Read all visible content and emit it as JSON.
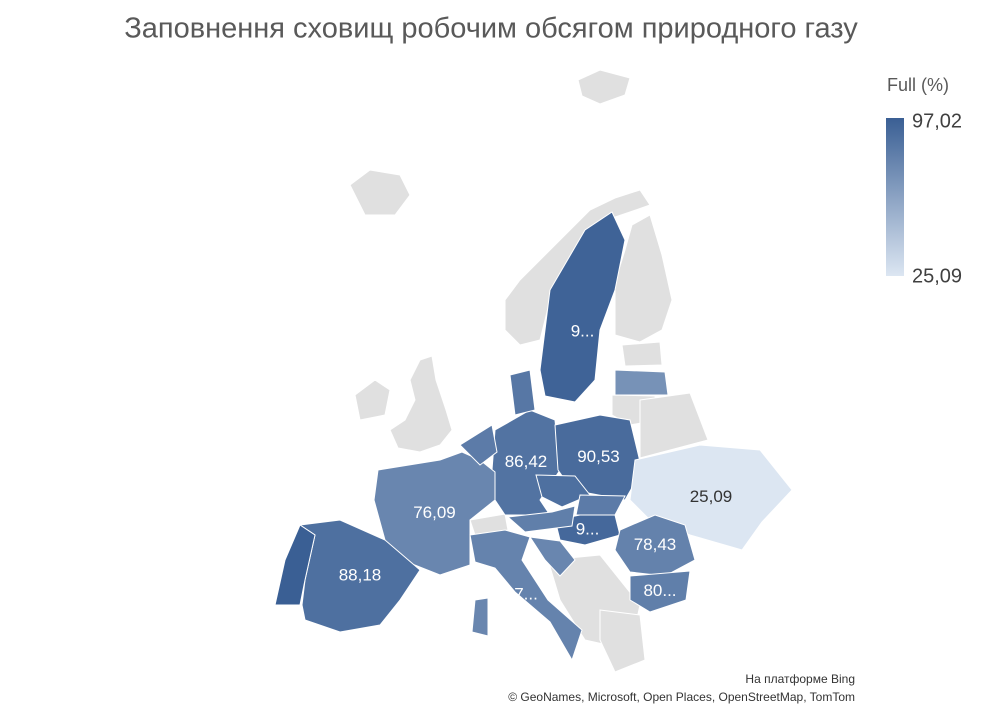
{
  "title": "Заповнення сховищ робочим обсягом природного газу",
  "legend": {
    "title": "Full (%)",
    "max": {
      "value": 97.02,
      "label": "97,02"
    },
    "min": {
      "value": 25.09,
      "label": "25,09"
    },
    "max_color": "#3a5f94",
    "min_color": "#dce6f2"
  },
  "regions": [
    {
      "value": 95,
      "label": "9..."
    },
    {
      "value": 86.42,
      "label": "86,42"
    },
    {
      "value": 90.53,
      "label": "90,53"
    },
    {
      "value": 25.09,
      "label": "25,09"
    },
    {
      "value": 76.09,
      "label": "76,09"
    },
    {
      "value": 92,
      "label": "9..."
    },
    {
      "value": 78,
      "label": "7..."
    },
    {
      "value": 78.43,
      "label": "78,43"
    },
    {
      "value": 88.18,
      "label": "88,18"
    },
    {
      "value": 80,
      "label": "80..."
    },
    {
      "value": 97.02
    },
    {
      "value": 70
    },
    {
      "value": 84
    },
    {
      "value": 82
    },
    {
      "value": 88
    },
    {
      "value": 80
    },
    {
      "value": 82
    },
    {
      "value": 76
    },
    {
      "value": 76
    }
  ],
  "attribution": [
    "На платформе Bing",
    "© GeoNames, Microsoft, Open Places, OpenStreetMap, TomTom"
  ]
}
